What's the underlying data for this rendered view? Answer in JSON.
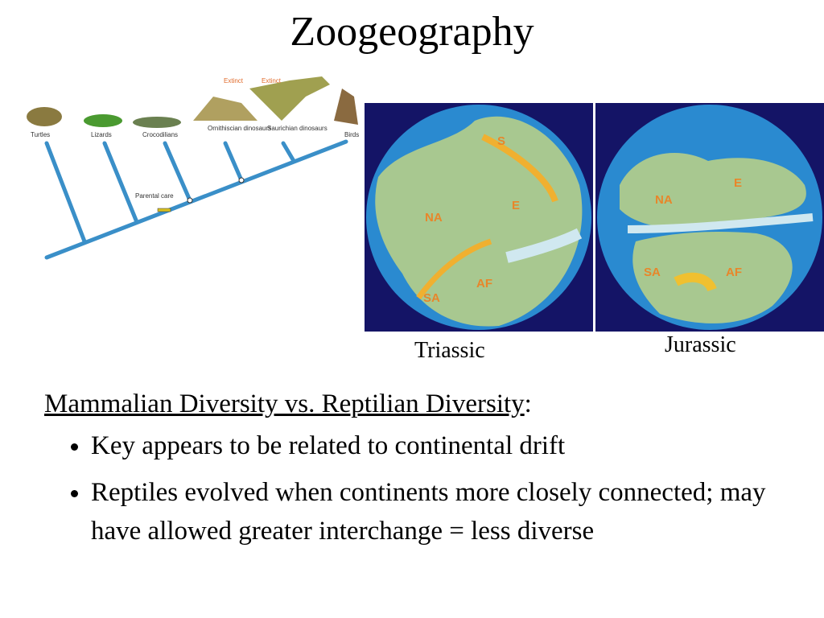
{
  "title": "Zoogeography",
  "cladogram": {
    "taxa": [
      "Turtles",
      "Lizards",
      "Crocodilians",
      "Ornithiscian dinosaurs",
      "Saurichian dinosaurs",
      "Birds"
    ],
    "extinct_labels": [
      "Extinct",
      "Extinct"
    ],
    "trait": "Parental care"
  },
  "maps": [
    {
      "caption": "Triassic",
      "labels": [
        "S",
        "E",
        "NA",
        "SA",
        "AF"
      ]
    },
    {
      "caption": "Jurassic",
      "labels": [
        "NA",
        "E",
        "SA",
        "AF"
      ]
    }
  ],
  "text": {
    "heading": "Mammalian Diversity vs. Reptilian Diversity",
    "heading_suffix": ":",
    "bullets": [
      "Key appears to be related to continental drift",
      "Reptiles evolved when continents more closely connected; may have allowed greater interchange = less diverse"
    ]
  }
}
